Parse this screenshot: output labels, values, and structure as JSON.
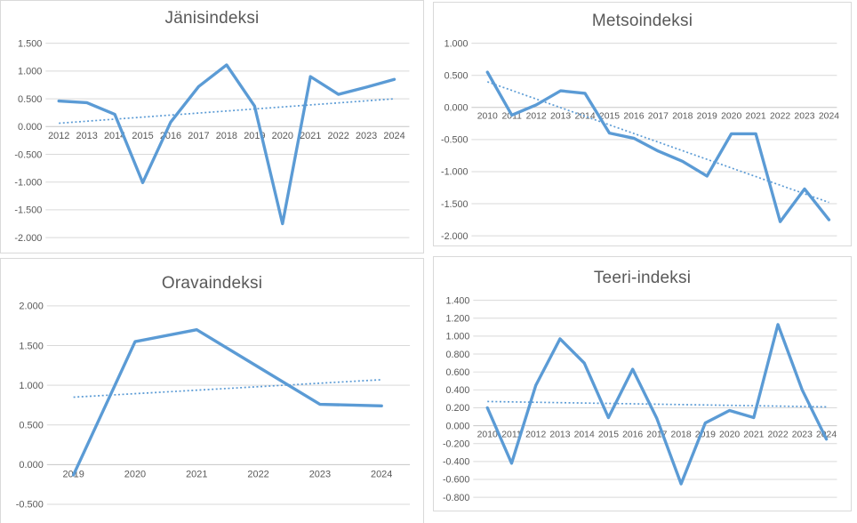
{
  "theme": {
    "line_color": "#5b9bd5",
    "trend_color": "#5b9bd5",
    "grid_color": "#d9d9d9",
    "axis_color": "#c6c6c6",
    "text_color": "#595959",
    "title_color": "#595959",
    "panel_border_color": "#d9d9d9",
    "background": "#ffffff"
  },
  "chart_data": [
    {
      "id": "janisindeksi",
      "type": "line",
      "title": "Jänisindeksi",
      "categories": [
        "2012",
        "2013",
        "2014",
        "2015",
        "2016",
        "2017",
        "2018",
        "2019",
        "2020",
        "2021",
        "2022",
        "2023",
        "2024"
      ],
      "series": [
        {
          "name": "Jänisindeksi",
          "style": "solid",
          "values": [
            0.46,
            0.43,
            0.22,
            -1.01,
            0.08,
            0.72,
            1.11,
            0.37,
            -1.75,
            0.9,
            0.58,
            0.71,
            0.85
          ]
        },
        {
          "name": "trendline",
          "style": "dotted",
          "values": [
            0.06,
            0.5
          ]
        }
      ],
      "ylim": [
        -2.0,
        1.5
      ],
      "y_step": 0.5,
      "y_tick_labels": [
        "1.500",
        "1.000",
        "0.500",
        "0.000",
        "-0.500",
        "-1.000",
        "-1.500",
        "-2.000"
      ],
      "grid": true,
      "legend": "none",
      "x_labels_position": "below-zero-axis"
    },
    {
      "id": "metsoindeksi",
      "type": "line",
      "title": "Metsoindeksi",
      "categories": [
        "2010",
        "2011",
        "2012",
        "2013",
        "2014",
        "2015",
        "2016",
        "2017",
        "2018",
        "2019",
        "2020",
        "2021",
        "2022",
        "2023",
        "2024"
      ],
      "series": [
        {
          "name": "Metsoindeksi",
          "style": "solid",
          "values": [
            0.55,
            -0.12,
            0.04,
            0.26,
            0.22,
            -0.4,
            -0.48,
            -0.68,
            -0.84,
            -1.07,
            -0.41,
            -0.41,
            -1.78,
            -1.27,
            -1.75
          ]
        },
        {
          "name": "trendline",
          "style": "dotted",
          "values": [
            0.4,
            -1.48
          ]
        }
      ],
      "ylim": [
        -2.0,
        1.0
      ],
      "y_step": 0.5,
      "y_tick_labels": [
        "1.000",
        "0.500",
        "0.000",
        "-0.500",
        "-1.000",
        "-1.500",
        "-2.000"
      ],
      "grid": true,
      "legend": "none",
      "x_labels_position": "below-zero-axis"
    },
    {
      "id": "oravaindeksi",
      "type": "line",
      "title": "Oravaindeksi",
      "categories": [
        "2019",
        "2020",
        "2021",
        "2022",
        "2023",
        "2024"
      ],
      "series": [
        {
          "name": "Oravaindeksi",
          "style": "solid",
          "values": [
            -0.13,
            1.55,
            1.7,
            1.23,
            0.76,
            0.74
          ]
        },
        {
          "name": "trendline",
          "style": "dotted",
          "values": [
            0.85,
            1.07
          ]
        }
      ],
      "ylim": [
        -0.5,
        2.0
      ],
      "y_step": 0.5,
      "y_tick_labels": [
        "2.000",
        "1.500",
        "1.000",
        "0.500",
        "0.000",
        "-0.500"
      ],
      "grid": true,
      "legend": "none",
      "x_labels_position": "below-zero-axis"
    },
    {
      "id": "teeriindeksi",
      "type": "line",
      "title": "Teeri-indeksi",
      "categories": [
        "2010",
        "2011",
        "2012",
        "2013",
        "2014",
        "2015",
        "2016",
        "2017",
        "2018",
        "2019",
        "2020",
        "2021",
        "2022",
        "2023",
        "2024"
      ],
      "series": [
        {
          "name": "Teeri-indeksi",
          "style": "solid",
          "values": [
            0.2,
            -0.42,
            0.45,
            0.97,
            0.7,
            0.09,
            0.63,
            0.08,
            -0.65,
            0.03,
            0.17,
            0.09,
            1.13,
            0.4,
            -0.15
          ]
        },
        {
          "name": "trendline",
          "style": "dotted",
          "values": [
            0.27,
            0.21
          ]
        }
      ],
      "ylim": [
        -0.8,
        1.4
      ],
      "y_step": 0.2,
      "y_tick_labels": [
        "1.400",
        "1.200",
        "1.000",
        "0.800",
        "0.600",
        "0.400",
        "0.200",
        "0.000",
        "-0.200",
        "-0.400",
        "-0.600",
        "-0.800"
      ],
      "grid": true,
      "legend": "none",
      "x_labels_position": "below-zero-axis"
    }
  ]
}
